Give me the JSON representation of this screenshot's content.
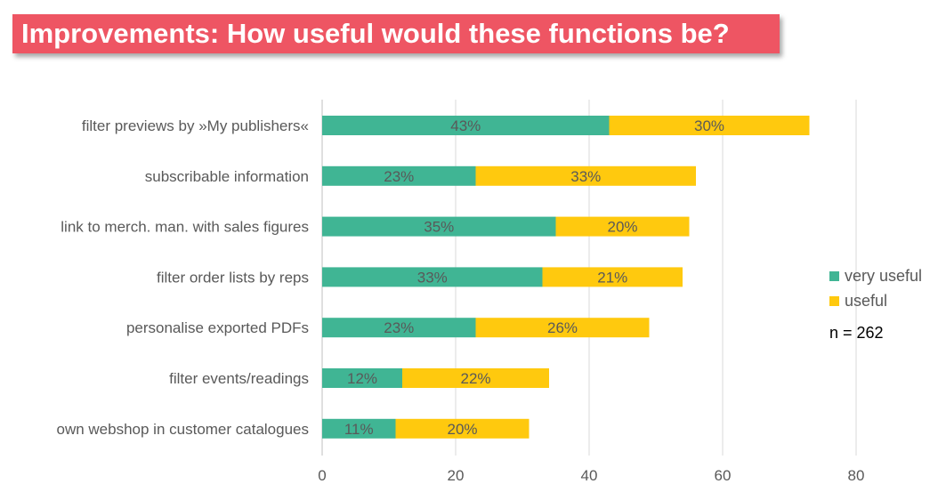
{
  "title": "Improvements: How useful would these functions be?",
  "note": "n = 262",
  "colors": {
    "very_useful": "#40b594",
    "useful": "#ffc90e",
    "grid": "#d9d9d9",
    "axis_text": "#595959"
  },
  "chart_data": {
    "type": "bar",
    "orientation": "horizontal",
    "stacked": true,
    "title": "Improvements: How useful would these functions be?",
    "categories": [
      "filter previews by »My publishers«",
      "subscribable information",
      "link to merch. man. with sales figures",
      "filter order lists by reps",
      "personalise exported PDFs",
      "filter events/readings",
      "own webshop in customer catalogues"
    ],
    "series": [
      {
        "name": "very useful",
        "values": [
          43,
          23,
          35,
          33,
          23,
          12,
          11
        ],
        "labels": [
          "43%",
          "23%",
          "35%",
          "33%",
          "23%",
          "12%",
          "11%"
        ]
      },
      {
        "name": "useful",
        "values": [
          30,
          33,
          20,
          21,
          26,
          22,
          20
        ],
        "labels": [
          "30%",
          "33%",
          "20%",
          "21%",
          "26%",
          "22%",
          "20%"
        ]
      }
    ],
    "xlim": [
      0,
      80
    ],
    "xticks": [
      0,
      20,
      40,
      60,
      80
    ],
    "grid": true,
    "legend_position": "right"
  }
}
